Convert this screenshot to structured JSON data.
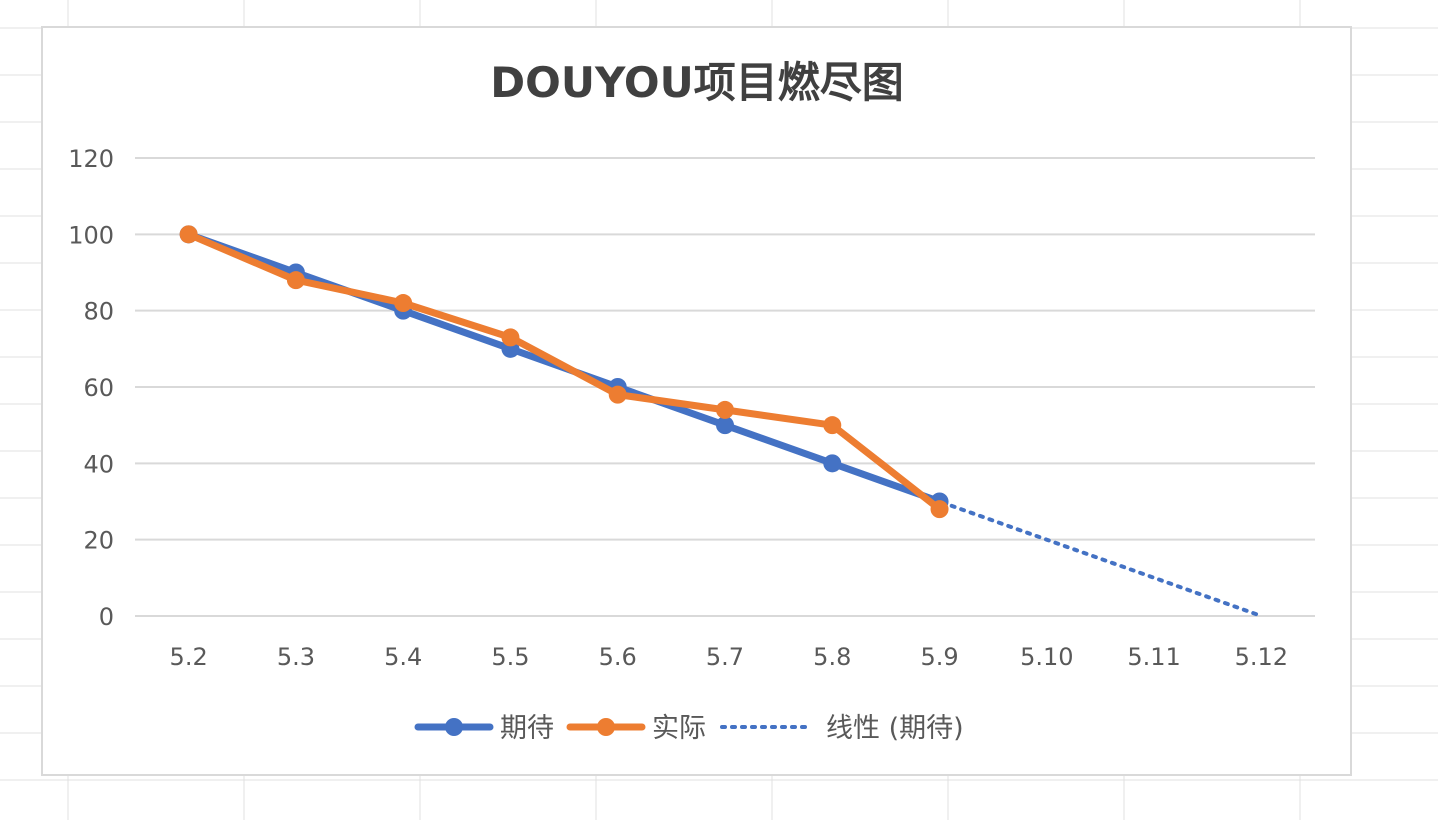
{
  "chart_data": {
    "type": "line",
    "title": "DOUYOU项目燃尽图",
    "xlabel": "",
    "ylabel": "",
    "categories": [
      "5.2",
      "5.3",
      "5.4",
      "5.5",
      "5.6",
      "5.7",
      "5.8",
      "5.9",
      "5.10",
      "5.11",
      "5.12"
    ],
    "ylim": [
      0,
      120
    ],
    "yticks": [
      0,
      20,
      40,
      60,
      80,
      100,
      120
    ],
    "grid": true,
    "legend_position": "bottom",
    "series": [
      {
        "name": "期待",
        "color": "#4472C4",
        "style": "solid-markers",
        "values": [
          100,
          90,
          80,
          70,
          60,
          50,
          40,
          30,
          null,
          null,
          null
        ]
      },
      {
        "name": "实际",
        "color": "#ED7D31",
        "style": "solid-markers",
        "values": [
          100,
          88,
          82,
          73,
          58,
          54,
          50,
          28,
          null,
          null,
          null
        ]
      },
      {
        "name": "线性 (期待)",
        "color": "#4472C4",
        "style": "dotted",
        "values": [
          100,
          90,
          80,
          70,
          60,
          50,
          40,
          30,
          20,
          10,
          0
        ]
      }
    ]
  }
}
